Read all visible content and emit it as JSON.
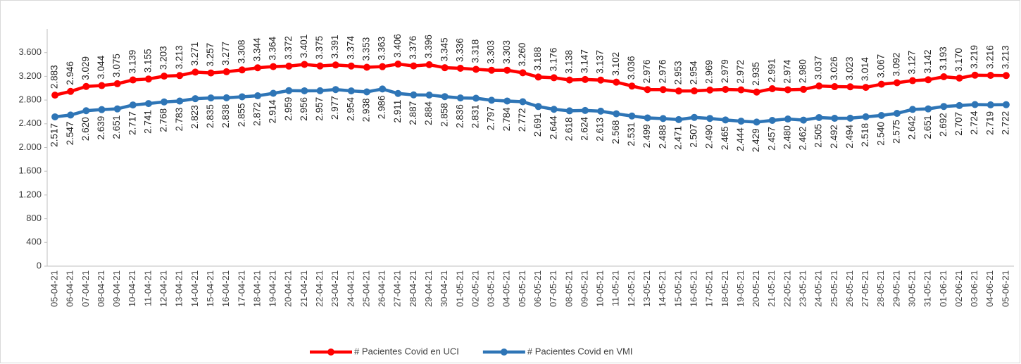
{
  "chart_data": {
    "type": "line",
    "categories": [
      "05-04-21",
      "06-04-21",
      "07-04-21",
      "08-04-21",
      "09-04-21",
      "10-04-21",
      "11-04-21",
      "12-04-21",
      "13-04-21",
      "14-04-21",
      "15-04-21",
      "16-04-21",
      "17-04-21",
      "18-04-21",
      "19-04-21",
      "20-04-21",
      "21-04-21",
      "22-04-21",
      "23-04-21",
      "24-04-21",
      "25-04-21",
      "26-04-21",
      "27-04-21",
      "28-04-21",
      "29-04-21",
      "30-04-21",
      "01-05-21",
      "02-05-21",
      "03-05-21",
      "04-05-21",
      "05-05-21",
      "06-05-21",
      "07-05-21",
      "08-05-21",
      "09-05-21",
      "10-05-21",
      "11-05-21",
      "12-05-21",
      "13-05-21",
      "14-05-21",
      "15-05-21",
      "16-05-21",
      "17-05-21",
      "18-05-21",
      "19-05-21",
      "20-05-21",
      "21-05-21",
      "22-05-21",
      "23-05-21",
      "24-05-21",
      "25-05-21",
      "26-05-21",
      "27-05-21",
      "28-05-21",
      "29-05-21",
      "30-05-21",
      "31-05-21",
      "01-06-21",
      "02-06-21",
      "03-06-21",
      "04-06-21",
      "05-06-21"
    ],
    "series": [
      {
        "name": "# Pacientes Covid en UCI",
        "color": "#ff0000",
        "values": [
          2883,
          2946,
          3029,
          3044,
          3075,
          3139,
          3155,
          3203,
          3213,
          3271,
          3257,
          3277,
          3308,
          3344,
          3364,
          3372,
          3401,
          3375,
          3391,
          3374,
          3353,
          3363,
          3406,
          3376,
          3396,
          3345,
          3336,
          3318,
          3303,
          3303,
          3260,
          3188,
          3176,
          3138,
          3147,
          3137,
          3102,
          3036,
          2976,
          2976,
          2953,
          2954,
          2969,
          2979,
          2972,
          2935,
          2991,
          2974,
          2980,
          3037,
          3026,
          3023,
          3014,
          3067,
          3092,
          3127,
          3142,
          3193,
          3170,
          3219,
          3216,
          3213
        ],
        "value_labels": [
          "2.883",
          "2.946",
          "3.029",
          "3.044",
          "3.075",
          "3.139",
          "3.155",
          "3.203",
          "3.213",
          "3.271",
          "3.257",
          "3.277",
          "3.308",
          "3.344",
          "3.364",
          "3.372",
          "3.401",
          "3.375",
          "3.391",
          "3.374",
          "3.353",
          "3.363",
          "3.406",
          "3.376",
          "3.396",
          "3.345",
          "3.336",
          "3.318",
          "3.303",
          "3.303",
          "3.260",
          "3.188",
          "3.176",
          "3.138",
          "3.147",
          "3.137",
          "3.102",
          "3.036",
          "2.976",
          "2.976",
          "2.953",
          "2.954",
          "2.969",
          "2.979",
          "2.972",
          "2.935",
          "2.991",
          "2.974",
          "2.980",
          "3.037",
          "3.026",
          "3.023",
          "3.014",
          "3.067",
          "3.092",
          "3.127",
          "3.142",
          "3.193",
          "3.170",
          "3.219",
          "3.216",
          "3.213"
        ]
      },
      {
        "name": "# Pacientes Covid en VMI",
        "color": "#2e75b6",
        "values": [
          2517,
          2547,
          2620,
          2639,
          2651,
          2717,
          2741,
          2768,
          2783,
          2823,
          2835,
          2838,
          2855,
          2872,
          2914,
          2959,
          2956,
          2957,
          2977,
          2954,
          2938,
          2986,
          2911,
          2887,
          2884,
          2858,
          2836,
          2831,
          2797,
          2784,
          2772,
          2691,
          2644,
          2618,
          2624,
          2613,
          2568,
          2531,
          2499,
          2488,
          2471,
          2507,
          2490,
          2465,
          2444,
          2429,
          2457,
          2480,
          2462,
          2505,
          2492,
          2494,
          2518,
          2540,
          2575,
          2642,
          2651,
          2692,
          2707,
          2724,
          2719,
          2722
        ],
        "value_labels": [
          "2.517",
          "2.547",
          "2.620",
          "2.639",
          "2.651",
          "2.717",
          "2.741",
          "2.768",
          "2.783",
          "2.823",
          "2.835",
          "2.838",
          "2.855",
          "2.872",
          "2.914",
          "2.959",
          "2.956",
          "2.957",
          "2.977",
          "2.954",
          "2.938",
          "2.986",
          "2.911",
          "2.887",
          "2.884",
          "2.858",
          "2.836",
          "2.831",
          "2.797",
          "2.784",
          "2.772",
          "2.691",
          "2.644",
          "2.618",
          "2.624",
          "2.613",
          "2.568",
          "2.531",
          "2.499",
          "2.488",
          "2.471",
          "2.507",
          "2.490",
          "2.465",
          "2.444",
          "2.429",
          "2.457",
          "2.480",
          "2.462",
          "2.505",
          "2.492",
          "2.494",
          "2.518",
          "2.540",
          "2.575",
          "2.642",
          "2.651",
          "2.692",
          "2.707",
          "2.724",
          "2.719",
          "2.722"
        ]
      }
    ],
    "ylim": [
      0,
      4000
    ],
    "yticks": [
      0,
      400,
      800,
      {
        "value": 1200,
        "label": "1.200"
      },
      {
        "value": 1600,
        "label": "1.600"
      },
      {
        "value": 2000,
        "label": "2.000"
      },
      {
        "value": 2400,
        "label": "2.400"
      },
      {
        "value": 2800,
        "label": "2.800"
      },
      {
        "value": 3200,
        "label": "3.200"
      },
      {
        "value": 3600,
        "label": "3.600"
      }
    ],
    "legend": "bottom"
  }
}
